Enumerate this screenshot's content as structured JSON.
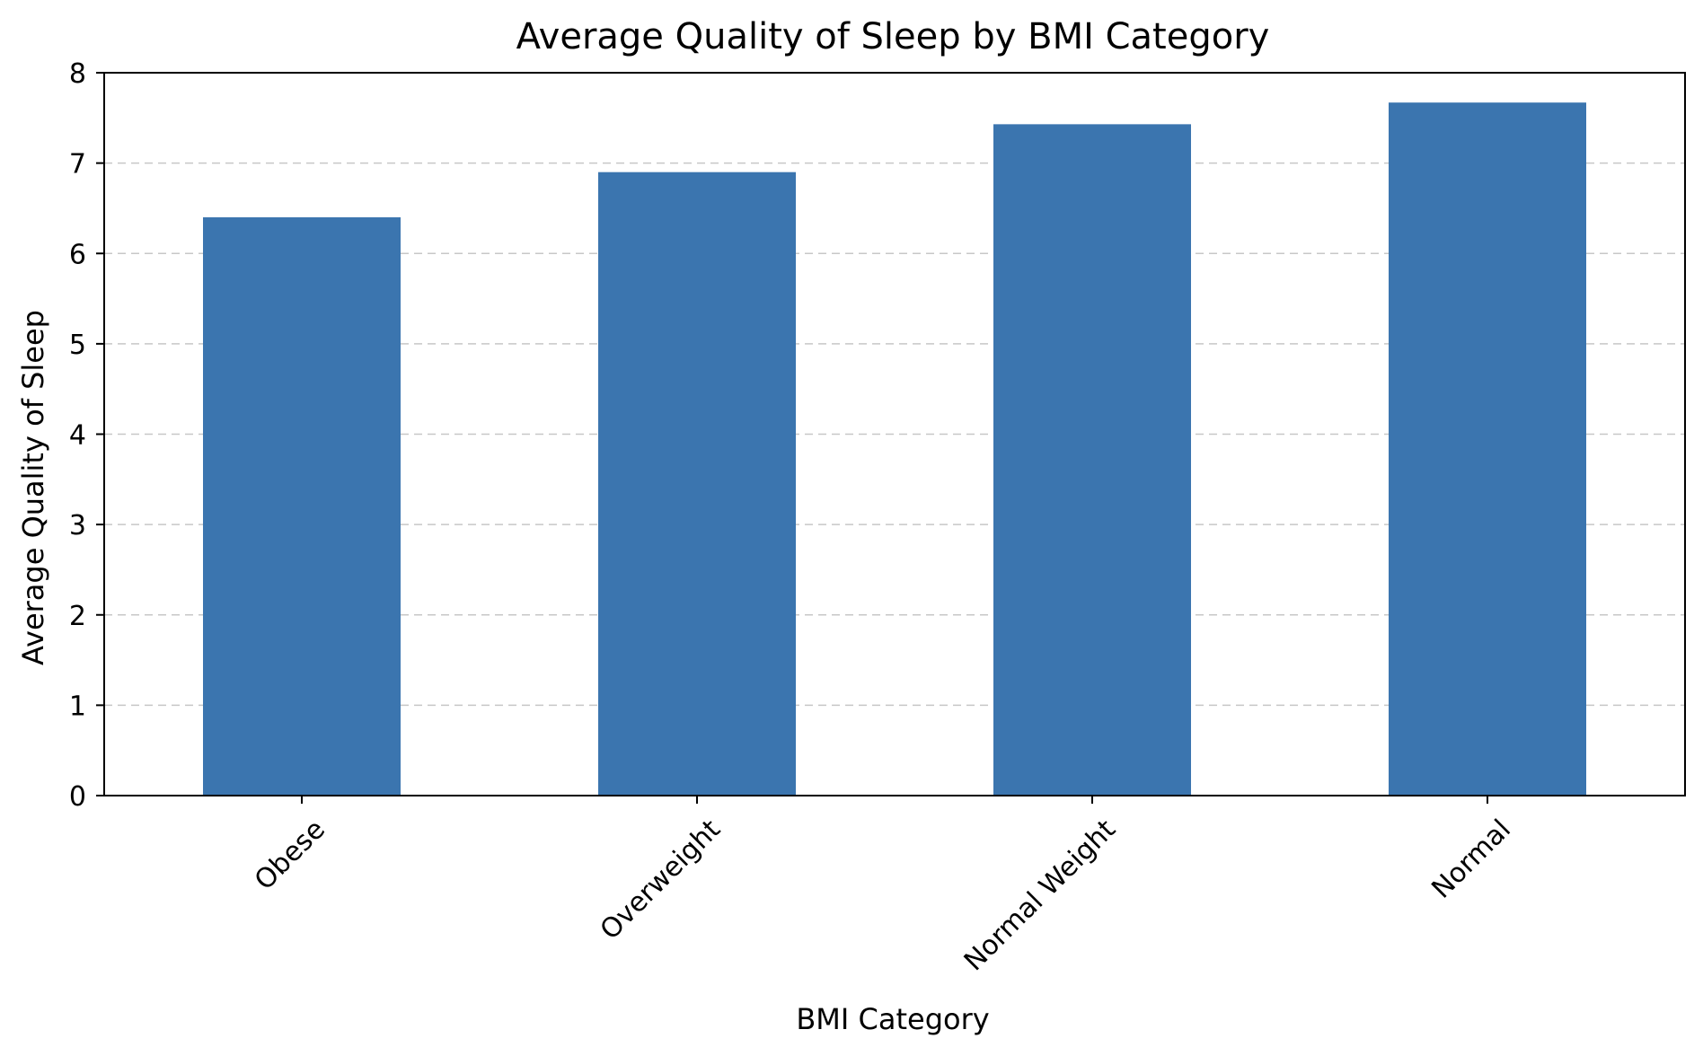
{
  "chart_data": {
    "type": "bar",
    "title": "Average Quality of Sleep by BMI Category",
    "xlabel": "BMI Category",
    "ylabel": "Average Quality of Sleep",
    "categories": [
      "Obese",
      "Overweight",
      "Normal Weight",
      "Normal"
    ],
    "values": [
      6.4,
      6.9,
      7.43,
      7.67
    ],
    "ylim": [
      0,
      8
    ],
    "yticks": [
      "0",
      "1",
      "2",
      "3",
      "4",
      "5",
      "6",
      "7",
      "8"
    ],
    "grid": "y-dashed",
    "legend": "none",
    "bar_color": "#3b75af",
    "xtick_rotation_deg": 45
  }
}
